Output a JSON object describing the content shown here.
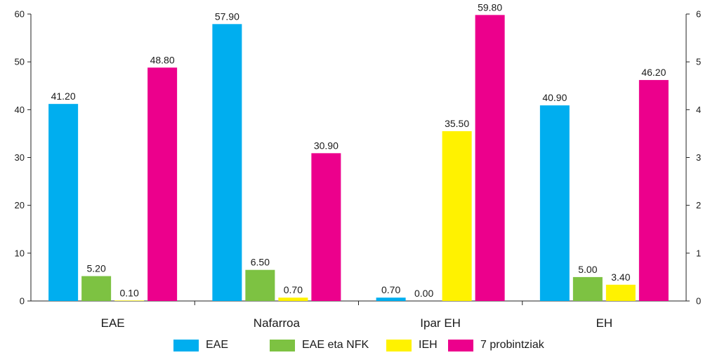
{
  "chart_data": {
    "type": "bar",
    "categories": [
      "EAE",
      "Nafarroa",
      "Ipar EH",
      "EH"
    ],
    "series": [
      {
        "name": "EAE",
        "color": "#00aeef",
        "values": [
          41.2,
          57.9,
          0.7,
          40.9
        ],
        "labels": [
          "41.20",
          "57.90",
          "0.70",
          "40.90"
        ]
      },
      {
        "name": "EAE eta NFK",
        "color": "#7dc242",
        "values": [
          5.2,
          6.5,
          0.0,
          5.0
        ],
        "labels": [
          "5.20",
          "6.50",
          "0.00",
          "5.00"
        ]
      },
      {
        "name": "IEH",
        "color": "#fff200",
        "values": [
          0.1,
          0.7,
          35.5,
          3.4
        ],
        "labels": [
          "0.10",
          "0.70",
          "35.50",
          "3.40"
        ]
      },
      {
        "name": "7 probintziak",
        "color": "#ec008c",
        "values": [
          48.8,
          30.9,
          59.8,
          46.2
        ],
        "labels": [
          "48.80",
          "30.90",
          "59.80",
          "46.20"
        ]
      }
    ],
    "ylim": [
      0,
      60
    ],
    "yticks": [
      "0",
      "10",
      "20",
      "30",
      "40",
      "50",
      "60"
    ],
    "right_axis_ticks_cropped": [
      "0",
      "1",
      "2",
      "3",
      "4",
      "5",
      "6"
    ],
    "grid": false,
    "legend_position": "bottom"
  }
}
